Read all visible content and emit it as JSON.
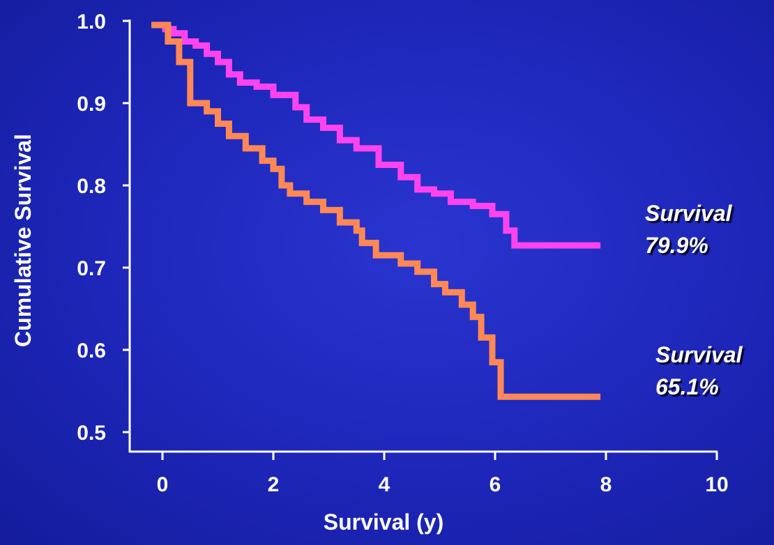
{
  "colors": {
    "background": "#1d26b8",
    "axis": "#ffffff",
    "series1": "#ff44ee",
    "series2": "#ff8855",
    "annotation1": "#ffffff",
    "annotation2": "#ffffff"
  },
  "chart_data": {
    "type": "line",
    "title": "",
    "xlabel": "Survival (y)",
    "ylabel": "Cumulative Survival",
    "xlim": [
      0,
      10
    ],
    "ylim": [
      0.5,
      1.0
    ],
    "xticks": [
      "0",
      "2",
      "4",
      "6",
      "8",
      "10"
    ],
    "yticks": [
      "1.0",
      "0.9",
      "0.8",
      "0.7",
      "0.6",
      "0.5"
    ],
    "grid": false,
    "step": true,
    "series": [
      {
        "color": "#ff44ee",
        "annotation": [
          "Survival",
          "79.9%"
        ],
        "x": [
          -0.2,
          0.05,
          0.2,
          0.4,
          0.6,
          0.8,
          1.0,
          1.2,
          1.4,
          1.7,
          2.0,
          2.4,
          2.6,
          2.9,
          3.2,
          3.5,
          3.9,
          4.3,
          4.6,
          4.9,
          5.2,
          5.6,
          5.95,
          6.2,
          6.35,
          7.9
        ],
        "y": [
          0.995,
          0.99,
          0.985,
          0.975,
          0.97,
          0.96,
          0.95,
          0.935,
          0.925,
          0.92,
          0.91,
          0.895,
          0.88,
          0.87,
          0.855,
          0.845,
          0.825,
          0.81,
          0.795,
          0.79,
          0.78,
          0.775,
          0.765,
          0.745,
          0.727,
          0.727
        ]
      },
      {
        "color": "#ff8855",
        "annotation": [
          "Survival",
          "65.1%"
        ],
        "x": [
          -0.2,
          0.1,
          0.3,
          0.5,
          0.8,
          1.0,
          1.2,
          1.5,
          1.8,
          2.0,
          2.15,
          2.3,
          2.6,
          2.9,
          3.2,
          3.5,
          3.6,
          3.85,
          4.3,
          4.6,
          4.9,
          5.1,
          5.4,
          5.6,
          5.75,
          5.95,
          6.1,
          7.9
        ],
        "y": [
          0.995,
          0.975,
          0.95,
          0.9,
          0.89,
          0.875,
          0.86,
          0.845,
          0.83,
          0.82,
          0.8,
          0.79,
          0.78,
          0.77,
          0.755,
          0.745,
          0.73,
          0.715,
          0.705,
          0.695,
          0.68,
          0.67,
          0.655,
          0.64,
          0.615,
          0.585,
          0.543,
          0.543
        ]
      }
    ]
  }
}
